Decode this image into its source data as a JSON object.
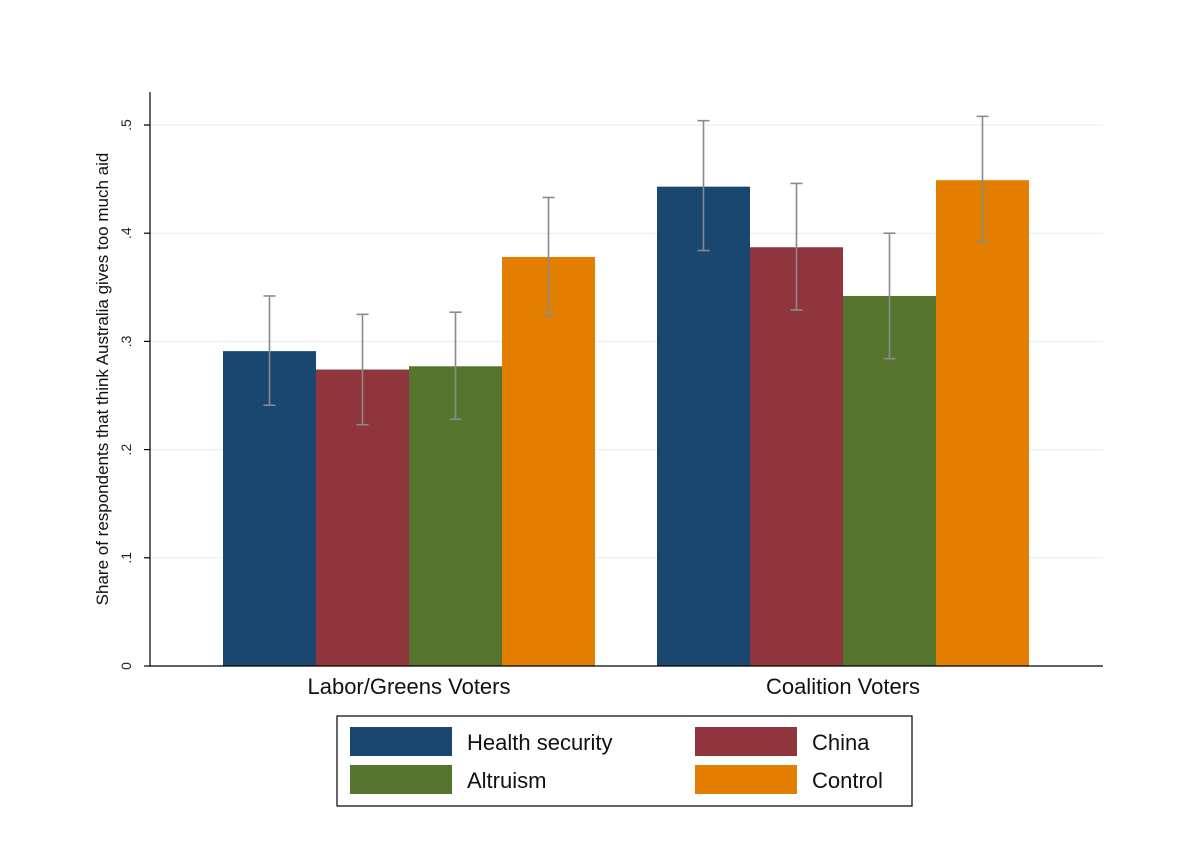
{
  "chart_data": {
    "type": "bar",
    "title": "",
    "xlabel": "",
    "ylabel": "Share of respondents that think Australia gives too much aid",
    "categories": [
      "Labor/Greens Voters",
      "Coalition Voters"
    ],
    "ylim": [
      0,
      0.5
    ],
    "yticks": [
      0,
      0.1,
      0.2,
      0.3,
      0.4,
      0.5
    ],
    "ytick_labels": [
      "0",
      ".1",
      ".2",
      ".3",
      ".4",
      ".5"
    ],
    "grid": true,
    "legend_position": "bottom",
    "series": [
      {
        "name": "Health security",
        "color": "#1a476f",
        "values": [
          0.291,
          0.443
        ],
        "ci_low": [
          0.241,
          0.384
        ],
        "ci_high": [
          0.342,
          0.504
        ]
      },
      {
        "name": "China",
        "color": "#90353b",
        "values": [
          0.274,
          0.387
        ],
        "ci_low": [
          0.223,
          0.329
        ],
        "ci_high": [
          0.325,
          0.446
        ]
      },
      {
        "name": "Altruism",
        "color": "#55752f",
        "values": [
          0.277,
          0.342
        ],
        "ci_low": [
          0.228,
          0.284
        ],
        "ci_high": [
          0.327,
          0.4
        ]
      },
      {
        "name": "Control",
        "color": "#e37e00",
        "values": [
          0.378,
          0.449
        ],
        "ci_low": [
          0.324,
          0.392
        ],
        "ci_high": [
          0.433,
          0.508
        ]
      }
    ]
  }
}
